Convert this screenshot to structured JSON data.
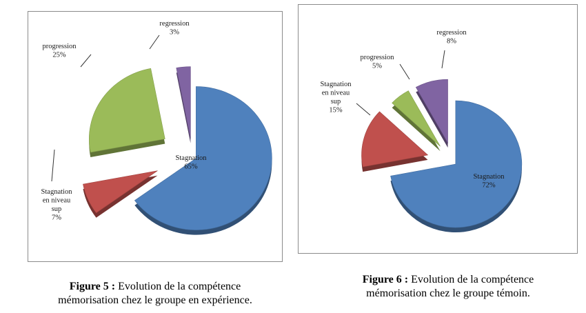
{
  "chart_data": [
    {
      "type": "pie",
      "categories": [
        "Stagnation",
        "Stagnation en niveau sup",
        "progression",
        "regression"
      ],
      "values": [
        65,
        7,
        25,
        3
      ],
      "data_labels": [
        [
          "Stagnation",
          "65%"
        ],
        [
          "Stagnation",
          "en niveau",
          "sup",
          "7%"
        ],
        [
          "progression",
          "25%"
        ],
        [
          "regression",
          "3%"
        ]
      ],
      "colors": [
        "#4f81bd",
        "#c0504d",
        "#9bbb59",
        "#8064a2"
      ],
      "exploded": true,
      "style": "3d",
      "caption_label": "Figure 5 :",
      "caption_text": "Evolution de la compétence",
      "caption_text_2": "mémorisation chez le groupe en expérience."
    },
    {
      "type": "pie",
      "categories": [
        "Stagnation",
        "Stagnation en niveau sup",
        "progression",
        "regression"
      ],
      "values": [
        72,
        15,
        5,
        8
      ],
      "data_labels": [
        [
          "Stagnation",
          "72%"
        ],
        [
          "Stagnation",
          "en niveau",
          "sup",
          "15%"
        ],
        [
          "progression",
          "5%"
        ],
        [
          "regression",
          "8%"
        ]
      ],
      "colors": [
        "#4f81bd",
        "#c0504d",
        "#9bbb59",
        "#8064a2"
      ],
      "exploded": true,
      "style": "3d",
      "caption_label": "Figure 6 :",
      "caption_text": "Evolution de la compétence",
      "caption_text_2": "mémorisation chez le groupe témoin."
    }
  ]
}
